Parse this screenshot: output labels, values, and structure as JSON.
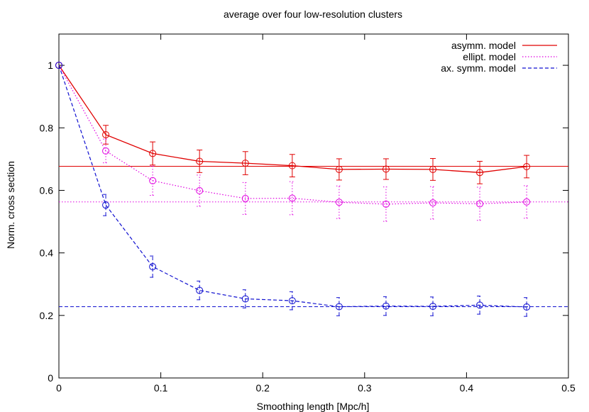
{
  "chart_data": {
    "type": "line",
    "title": "average over four low-resolution clusters",
    "xlabel": "Smoothing length [Mpc/h]",
    "ylabel": "Norm. cross section",
    "xlim": [
      0,
      0.5
    ],
    "ylim": [
      0,
      1.1
    ],
    "xticks": [
      0,
      0.1,
      0.2,
      0.3,
      0.4,
      0.5
    ],
    "xtick_labels": [
      "0",
      "0.1",
      "0.2",
      "0.3",
      "0.4",
      "0.5"
    ],
    "yticks": [
      0,
      0.2,
      0.4,
      0.6,
      0.8,
      1.0
    ],
    "ytick_labels": [
      "0",
      "0.2",
      "0.4",
      "0.6",
      "0.8",
      "1"
    ],
    "grid": false,
    "legend_position": "top-right",
    "x": [
      0,
      0.046,
      0.092,
      0.138,
      0.183,
      0.229,
      0.275,
      0.321,
      0.367,
      0.413,
      0.459
    ],
    "series": [
      {
        "name": "asymm. model",
        "color": "#e00000",
        "dash": "solid",
        "values": [
          1.0,
          0.778,
          0.718,
          0.693,
          0.687,
          0.679,
          0.667,
          0.668,
          0.667,
          0.657,
          0.676
        ],
        "errors": [
          0,
          0.03,
          0.037,
          0.036,
          0.037,
          0.036,
          0.034,
          0.033,
          0.035,
          0.036,
          0.036
        ],
        "reference": 0.677
      },
      {
        "name": "ellipt. model",
        "color": "#e000e0",
        "dash": "dotted",
        "values": [
          1.0,
          0.726,
          0.631,
          0.599,
          0.574,
          0.575,
          0.562,
          0.556,
          0.56,
          0.557,
          0.563
        ],
        "errors": [
          0,
          0.038,
          0.047,
          0.05,
          0.051,
          0.053,
          0.052,
          0.055,
          0.052,
          0.053,
          0.052
        ],
        "reference": 0.563
      },
      {
        "name": "ax. symm. model",
        "color": "#1010d0",
        "dash": "dashed",
        "values": [
          1.0,
          0.553,
          0.356,
          0.28,
          0.253,
          0.247,
          0.228,
          0.23,
          0.229,
          0.233,
          0.227
        ],
        "errors": [
          0,
          0.034,
          0.034,
          0.03,
          0.029,
          0.029,
          0.029,
          0.03,
          0.03,
          0.029,
          0.03
        ],
        "reference": 0.228
      }
    ]
  }
}
